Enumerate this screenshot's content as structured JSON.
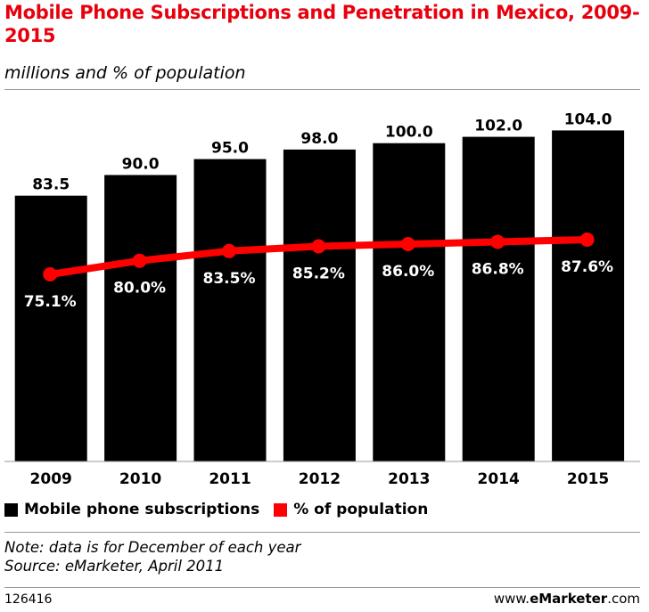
{
  "colors": {
    "title": "#e8000d",
    "bar": "#000000",
    "line": "#ff0000",
    "bar_label": "#000000",
    "line_label": "#ffffff"
  },
  "chart_data": {
    "type": "bar",
    "title": "Mobile Phone Subscriptions and Penetration in Mexico, 2009-2015",
    "subtitle": "millions and % of population",
    "categories": [
      "2009",
      "2010",
      "2011",
      "2012",
      "2013",
      "2014",
      "2015"
    ],
    "series": [
      {
        "name": "Mobile phone subscriptions",
        "type": "bar",
        "values": [
          83.5,
          90.0,
          95.0,
          98.0,
          100.0,
          102.0,
          104.0
        ],
        "labels": [
          "83.5",
          "90.0",
          "95.0",
          "98.0",
          "100.0",
          "102.0",
          "104.0"
        ]
      },
      {
        "name": "% of population",
        "type": "line",
        "values": [
          75.1,
          80.0,
          83.5,
          85.2,
          86.0,
          86.8,
          87.6
        ],
        "labels": [
          "75.1%",
          "80.0%",
          "83.5%",
          "85.2%",
          "86.0%",
          "86.8%",
          "87.6%"
        ]
      }
    ],
    "xlabel": "",
    "ylabel": "",
    "ylim": [
      0,
      110
    ],
    "legend": "bottom-left"
  },
  "note": "Note: data is for December of each year",
  "source": "Source: eMarketer, April 2011",
  "footer": {
    "id": "126416",
    "site_prefix": "www.",
    "site_brand": "eMarketer",
    "site_suffix": ".com"
  }
}
